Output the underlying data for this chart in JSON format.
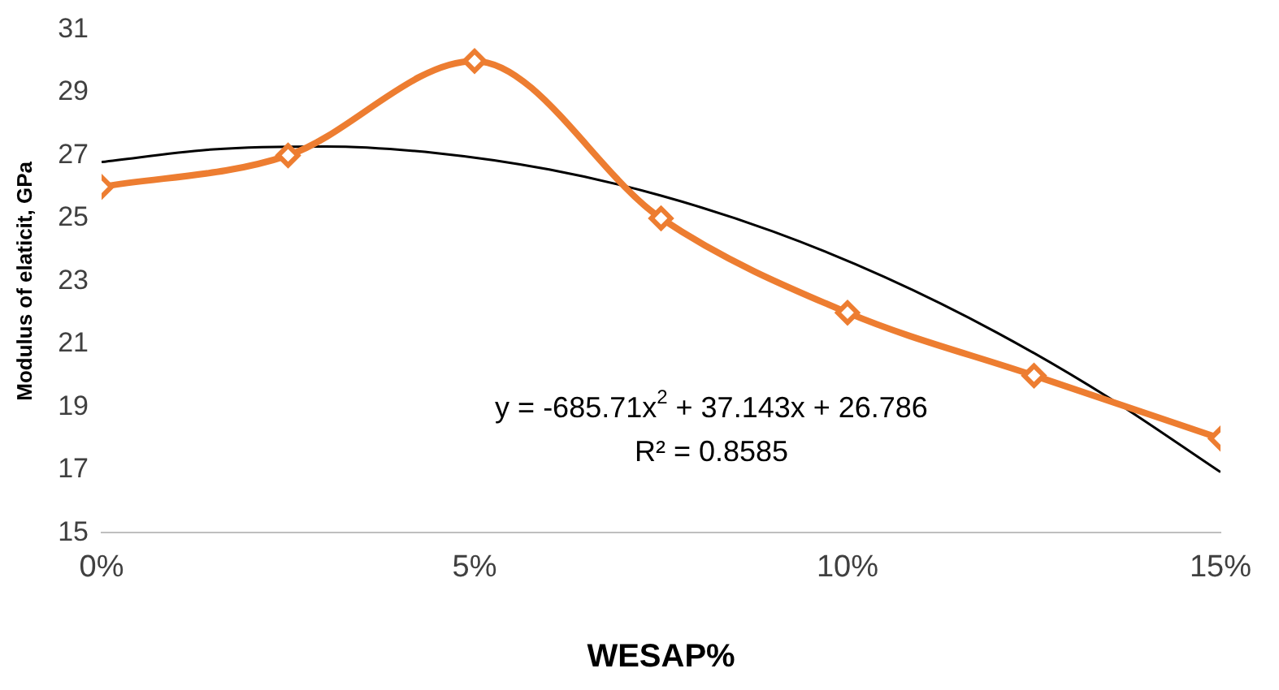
{
  "chart_data": {
    "type": "line",
    "xlabel": "WESAP%",
    "ylabel": "Modulus of elaticit, GPa",
    "xlim": [
      0,
      15
    ],
    "xticks": [
      {
        "value": 0,
        "label": "0%"
      },
      {
        "value": 5,
        "label": "5%"
      },
      {
        "value": 10,
        "label": "10%"
      },
      {
        "value": 15,
        "label": "15%"
      }
    ],
    "ylim": [
      15,
      31
    ],
    "yticks": [
      15,
      17,
      19,
      21,
      23,
      25,
      27,
      29,
      31
    ],
    "grid": false,
    "legend": false,
    "series": [
      {
        "color": "#ed7d31",
        "marker": "diamond",
        "x": [
          0,
          2.5,
          5,
          7.5,
          10,
          12.5,
          15
        ],
        "values": [
          26,
          27,
          30,
          25,
          22,
          20,
          18
        ]
      },
      {
        "color": "#000000",
        "marker": "none",
        "x": [
          0,
          1.5,
          3,
          4.5,
          6,
          7.5,
          9,
          10.5,
          12,
          13.5,
          15
        ],
        "values": [
          26.79,
          27.19,
          27.28,
          27.07,
          26.55,
          25.72,
          24.58,
          23.13,
          21.37,
          19.3,
          16.93
        ]
      }
    ],
    "annotations": [
      "y = -685.71x$^{2}$ + 37.143x + 26.786",
      "R² = 0.8585"
    ]
  }
}
